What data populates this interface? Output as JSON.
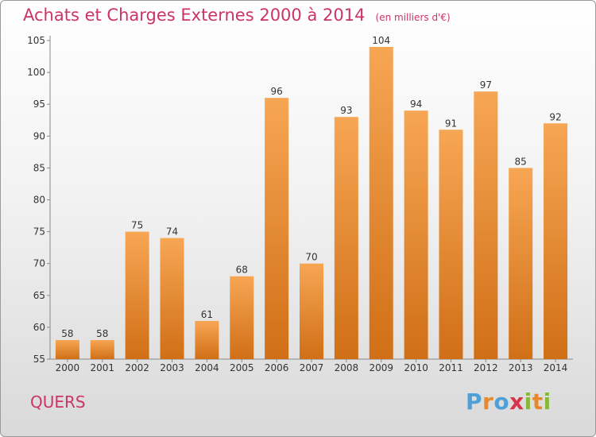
{
  "header": {
    "title": "Achats et Charges Externes 2000 à 2014",
    "unit": "(en milliers d'€)"
  },
  "commune": "QUERS",
  "logo": {
    "letters": [
      "P",
      "r",
      "o",
      "x",
      "i",
      "t",
      "i"
    ],
    "colors": [
      "#4fa0d8",
      "#e8882a",
      "#4fa0d8",
      "#d8344a",
      "#88b83a",
      "#e8882a",
      "#88b83a"
    ]
  },
  "colors": {
    "accent": "#cc3366",
    "bar_light": "#f7a654",
    "bar_dark": "#d06f16"
  },
  "chart_data": {
    "type": "bar",
    "categories": [
      "2000",
      "2001",
      "2002",
      "2003",
      "2004",
      "2005",
      "2006",
      "2007",
      "2008",
      "2009",
      "2010",
      "2011",
      "2012",
      "2013",
      "2014"
    ],
    "values": [
      58,
      58,
      75,
      74,
      61,
      68,
      96,
      70,
      93,
      104,
      94,
      91,
      97,
      85,
      92
    ],
    "ylim": [
      55,
      105
    ],
    "yticks": [
      55,
      60,
      65,
      70,
      75,
      80,
      85,
      90,
      95,
      100,
      105
    ],
    "grid": false,
    "data_labels": true
  }
}
